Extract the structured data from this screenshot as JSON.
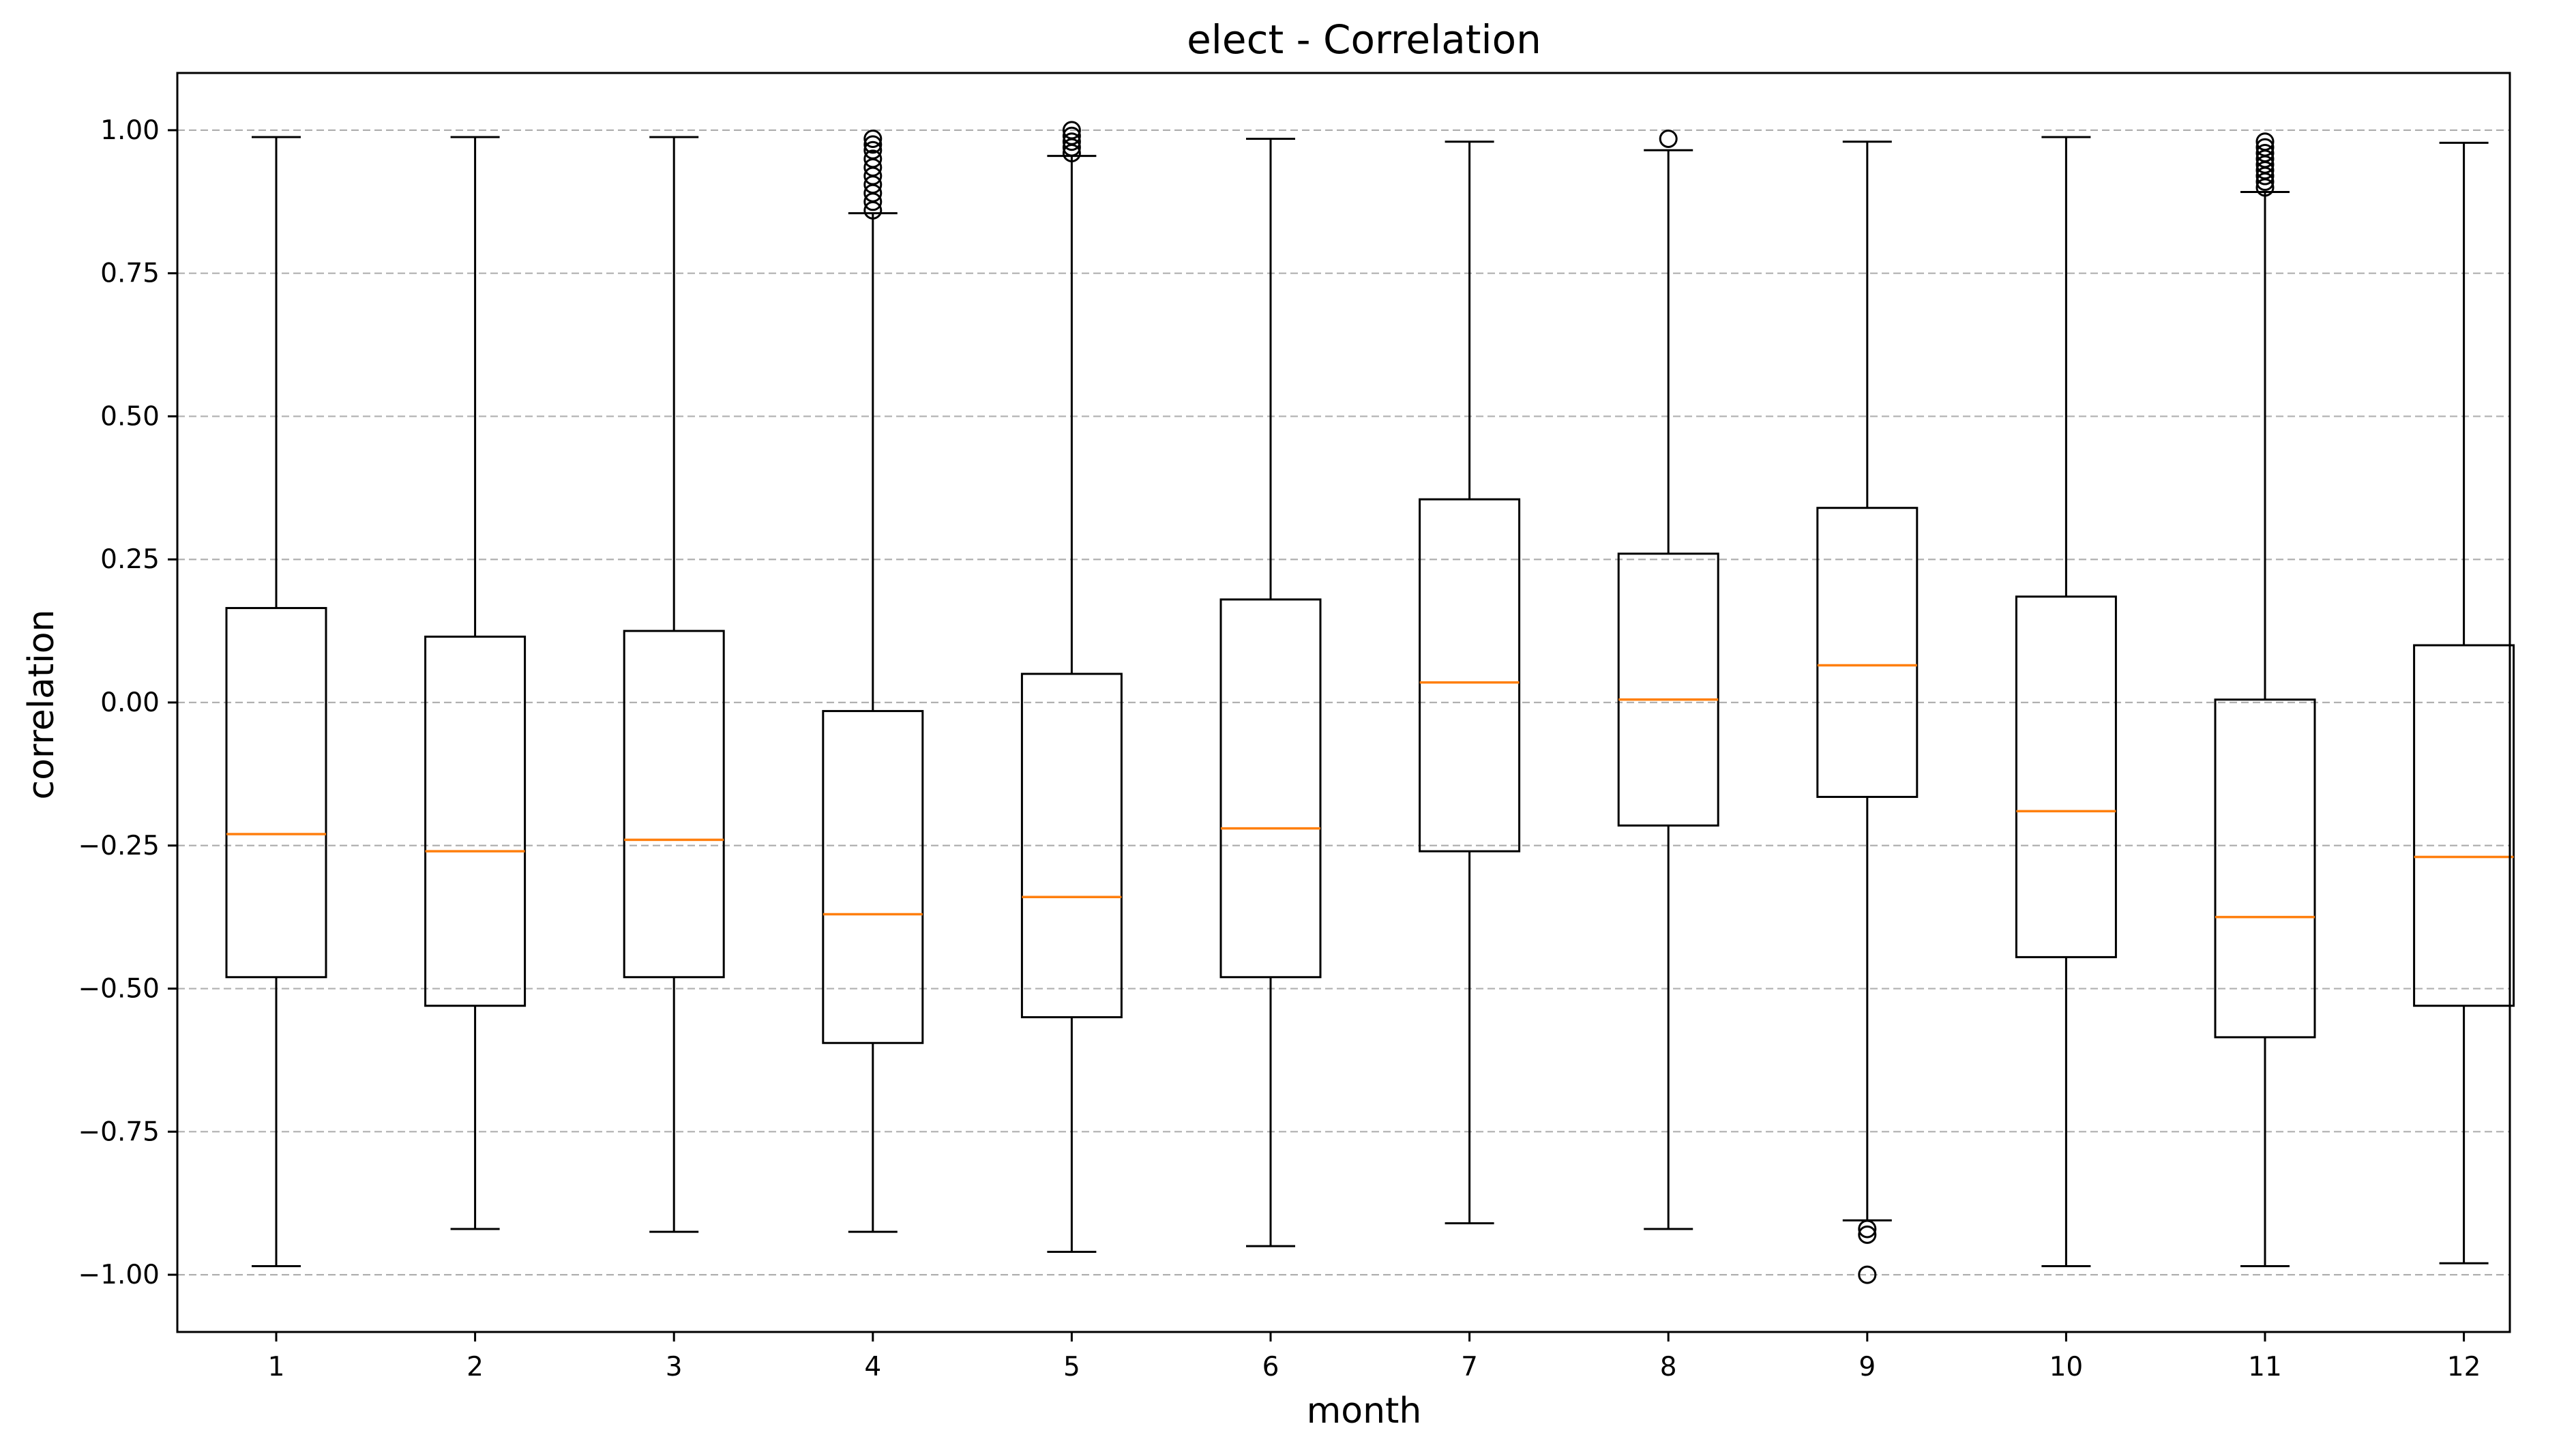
{
  "chart_data": {
    "type": "boxplot",
    "title": "elect - Correlation",
    "xlabel": "month",
    "ylabel": "correlation",
    "ylim": [
      -1.1,
      1.1
    ],
    "yticks": [
      "1.00",
      "0.75",
      "0.50",
      "0.25",
      "0.00",
      "−0.25",
      "−0.50",
      "−0.75",
      "−1.00"
    ],
    "ytick_values": [
      1.0,
      0.75,
      0.5,
      0.25,
      0.0,
      -0.25,
      -0.5,
      -0.75,
      -1.0
    ],
    "grid": "horizontal-dashed",
    "colors": {
      "box": "#000000",
      "median": "#ff7f0e",
      "grid": "#b0b0b0"
    },
    "categories": [
      "1",
      "2",
      "3",
      "4",
      "5",
      "6",
      "7",
      "8",
      "9",
      "10",
      "11",
      "12"
    ],
    "boxes": [
      {
        "month": "1",
        "whislo": -0.985,
        "q1": -0.48,
        "med": -0.23,
        "q3": 0.165,
        "whishi": 0.988,
        "fliers": []
      },
      {
        "month": "2",
        "whislo": -0.92,
        "q1": -0.53,
        "med": -0.26,
        "q3": 0.115,
        "whishi": 0.988,
        "fliers": []
      },
      {
        "month": "3",
        "whislo": -0.925,
        "q1": -0.48,
        "med": -0.24,
        "q3": 0.125,
        "whishi": 0.988,
        "fliers": []
      },
      {
        "month": "4",
        "whislo": -0.925,
        "q1": -0.595,
        "med": -0.37,
        "q3": -0.015,
        "whishi": 0.855,
        "fliers": [
          0.86,
          0.875,
          0.89,
          0.905,
          0.92,
          0.935,
          0.95,
          0.965,
          0.975,
          0.985
        ]
      },
      {
        "month": "5",
        "whislo": -0.96,
        "q1": -0.55,
        "med": -0.34,
        "q3": 0.05,
        "whishi": 0.955,
        "fliers": [
          0.96,
          0.97,
          0.98,
          0.99,
          1.0
        ]
      },
      {
        "month": "6",
        "whislo": -0.95,
        "q1": -0.48,
        "med": -0.22,
        "q3": 0.18,
        "whishi": 0.985,
        "fliers": []
      },
      {
        "month": "7",
        "whislo": -0.91,
        "q1": -0.26,
        "med": 0.035,
        "q3": 0.355,
        "whishi": 0.98,
        "fliers": []
      },
      {
        "month": "8",
        "whislo": -0.92,
        "q1": -0.215,
        "med": 0.005,
        "q3": 0.26,
        "whishi": 0.965,
        "fliers": [
          0.985
        ]
      },
      {
        "month": "9",
        "whislo": -0.905,
        "q1": -0.165,
        "med": 0.065,
        "q3": 0.34,
        "whishi": 0.98,
        "fliers": [
          -0.92,
          -0.93,
          -1.0
        ]
      },
      {
        "month": "10",
        "whislo": -0.985,
        "q1": -0.445,
        "med": -0.19,
        "q3": 0.185,
        "whishi": 0.988,
        "fliers": []
      },
      {
        "month": "11",
        "whislo": -0.985,
        "q1": -0.585,
        "med": -0.375,
        "q3": 0.005,
        "whishi": 0.892,
        "fliers": [
          0.9,
          0.91,
          0.92,
          0.93,
          0.94,
          0.95,
          0.96,
          0.97,
          0.98
        ]
      },
      {
        "month": "12",
        "whislo": -0.98,
        "q1": -0.53,
        "med": -0.27,
        "q3": 0.1,
        "whishi": 0.978,
        "fliers": []
      }
    ]
  }
}
